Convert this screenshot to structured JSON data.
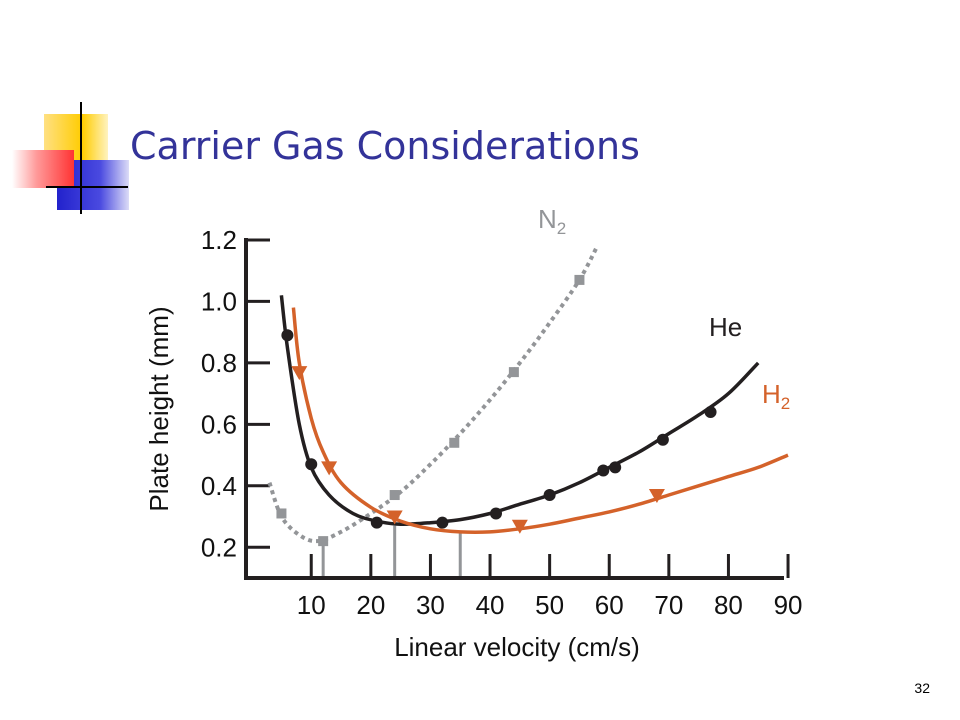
{
  "slide": {
    "title": "Carrier Gas Considerations",
    "page_number": "32"
  },
  "chart_data": {
    "type": "line",
    "xlabel": "Linear velocity (cm/s)",
    "ylabel": "Plate height (mm)",
    "xlim": [
      0,
      90
    ],
    "ylim": [
      0.1,
      1.2
    ],
    "x_ticks": [
      10,
      20,
      30,
      40,
      50,
      60,
      70,
      80,
      90
    ],
    "y_ticks": [
      0.2,
      0.4,
      0.6,
      0.8,
      1.0,
      1.2
    ],
    "y_tick_labels": [
      "0.2",
      "0.4",
      "0.6",
      "0.8",
      "1.0",
      "1.2"
    ],
    "series": [
      {
        "name": "N2",
        "label_main": "N",
        "label_sub": "2",
        "color": "#939598",
        "style": "dotted",
        "marker": "square",
        "curve": [
          [
            3,
            0.41
          ],
          [
            5,
            0.3
          ],
          [
            8,
            0.24
          ],
          [
            11,
            0.22
          ],
          [
            15,
            0.25
          ],
          [
            20,
            0.31
          ],
          [
            25,
            0.38
          ],
          [
            30,
            0.47
          ],
          [
            35,
            0.57
          ],
          [
            40,
            0.68
          ],
          [
            45,
            0.8
          ],
          [
            50,
            0.93
          ],
          [
            55,
            1.07
          ],
          [
            58,
            1.18
          ]
        ],
        "points": [
          [
            5,
            0.31
          ],
          [
            12,
            0.22
          ],
          [
            24,
            0.37
          ],
          [
            34,
            0.54
          ],
          [
            44,
            0.77
          ],
          [
            55,
            1.07
          ]
        ]
      },
      {
        "name": "He",
        "label_main": "He",
        "color": "#231f20",
        "style": "solid",
        "marker": "circle",
        "curve": [
          [
            5,
            1.02
          ],
          [
            6,
            0.85
          ],
          [
            8,
            0.6
          ],
          [
            10,
            0.46
          ],
          [
            13,
            0.37
          ],
          [
            17,
            0.31
          ],
          [
            21,
            0.285
          ],
          [
            25,
            0.275
          ],
          [
            30,
            0.28
          ],
          [
            35,
            0.29
          ],
          [
            40,
            0.31
          ],
          [
            45,
            0.34
          ],
          [
            50,
            0.37
          ],
          [
            55,
            0.41
          ],
          [
            60,
            0.46
          ],
          [
            65,
            0.51
          ],
          [
            70,
            0.57
          ],
          [
            75,
            0.63
          ],
          [
            80,
            0.7
          ],
          [
            85,
            0.8
          ]
        ],
        "points": [
          [
            6,
            0.89
          ],
          [
            10,
            0.47
          ],
          [
            21,
            0.28
          ],
          [
            32,
            0.28
          ],
          [
            41,
            0.31
          ],
          [
            50,
            0.37
          ],
          [
            59,
            0.45
          ],
          [
            61,
            0.46
          ],
          [
            69,
            0.55
          ],
          [
            77,
            0.64
          ]
        ]
      },
      {
        "name": "H2",
        "label_main": "H",
        "label_sub": "2",
        "color": "#d4622a",
        "style": "solid",
        "marker": "triangle-down",
        "curve": [
          [
            7,
            0.98
          ],
          [
            8,
            0.8
          ],
          [
            10,
            0.62
          ],
          [
            12,
            0.51
          ],
          [
            15,
            0.41
          ],
          [
            20,
            0.33
          ],
          [
            25,
            0.285
          ],
          [
            30,
            0.26
          ],
          [
            35,
            0.25
          ],
          [
            40,
            0.25
          ],
          [
            45,
            0.26
          ],
          [
            50,
            0.275
          ],
          [
            55,
            0.295
          ],
          [
            60,
            0.315
          ],
          [
            65,
            0.34
          ],
          [
            70,
            0.37
          ],
          [
            75,
            0.4
          ],
          [
            80,
            0.43
          ],
          [
            85,
            0.46
          ],
          [
            90,
            0.5
          ]
        ],
        "points": [
          [
            8,
            0.77
          ],
          [
            13,
            0.46
          ],
          [
            24,
            0.3
          ],
          [
            45,
            0.27
          ],
          [
            68,
            0.37
          ]
        ]
      }
    ],
    "optimum_markers": [
      {
        "series": "N2",
        "x": 12,
        "y": 0.22
      },
      {
        "series": "He",
        "x": 24,
        "y": 0.27
      },
      {
        "series": "H2",
        "x": 35,
        "y": 0.25
      }
    ]
  }
}
